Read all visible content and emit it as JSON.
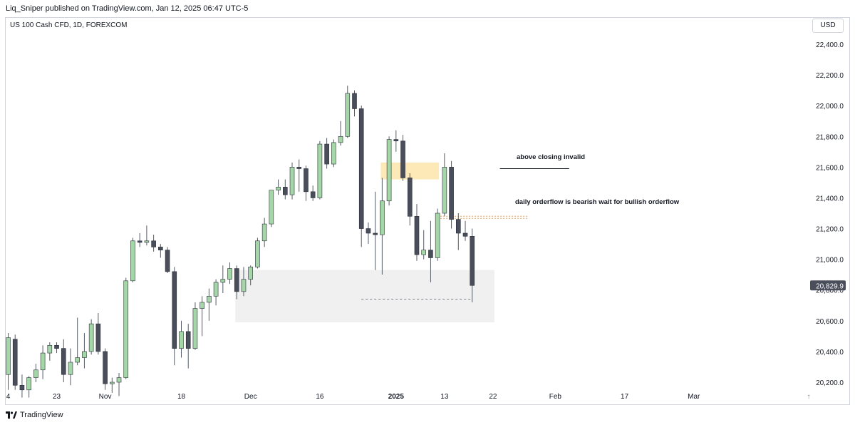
{
  "header": {
    "text": "Liq_Sniper published on TradingView.com, Jan 12, 2025 06:47 UTC-5"
  },
  "symbol": {
    "text": "US 100 Cash CFD, 1D, FOREXCOM"
  },
  "currency": "USD",
  "brand": {
    "name": "TradingView"
  },
  "colors": {
    "up": "#a5d6a7",
    "down": "#4a4e5a",
    "wick": "#555a66",
    "zone": "#f0f0f0",
    "supply": "#fde9b8",
    "price_label": "#4a4e5a"
  },
  "chart_data": {
    "type": "candlestick",
    "y_axis": {
      "min": 20150,
      "max": 22500,
      "ticks": [
        "22,400.0",
        "22,200.0",
        "22,000.0",
        "21,800.0",
        "21,600.0",
        "21,400.0",
        "21,200.0",
        "21,000.0",
        "20,800.0",
        "20,600.0",
        "20,400.0",
        "20,200.0"
      ],
      "tick_values": [
        22400,
        22200,
        22000,
        21800,
        21600,
        21400,
        21200,
        21000,
        20800,
        20600,
        20400,
        20200
      ]
    },
    "x_axis": {
      "labels": [
        {
          "text": "4",
          "bar": 0
        },
        {
          "text": "23",
          "bar": 7
        },
        {
          "text": "Nov",
          "bar": 14
        },
        {
          "text": "18",
          "bar": 25
        },
        {
          "text": "Dec",
          "bar": 35
        },
        {
          "text": "16",
          "bar": 45
        },
        {
          "text": "2025",
          "bar": 56
        },
        {
          "text": "13",
          "bar": 63
        },
        {
          "text": "22",
          "bar": 70
        },
        {
          "text": "Feb",
          "bar": 79
        },
        {
          "text": "17",
          "bar": 89
        },
        {
          "text": "Mar",
          "bar": 99
        }
      ]
    },
    "last_price": {
      "value": 20829.9,
      "label": "20,829.9"
    },
    "candles": [
      {
        "o": 20250,
        "h": 20520,
        "l": 20150,
        "c": 20490
      },
      {
        "o": 20480,
        "h": 20510,
        "l": 20150,
        "c": 20180
      },
      {
        "o": 20180,
        "h": 20250,
        "l": 20100,
        "c": 20150
      },
      {
        "o": 20150,
        "h": 20240,
        "l": 20100,
        "c": 20230
      },
      {
        "o": 20230,
        "h": 20320,
        "l": 20200,
        "c": 20280
      },
      {
        "o": 20280,
        "h": 20440,
        "l": 20220,
        "c": 20390
      },
      {
        "o": 20390,
        "h": 20460,
        "l": 20340,
        "c": 20440
      },
      {
        "o": 20440,
        "h": 20460,
        "l": 20390,
        "c": 20420
      },
      {
        "o": 20420,
        "h": 20480,
        "l": 20200,
        "c": 20250
      },
      {
        "o": 20250,
        "h": 20420,
        "l": 20180,
        "c": 20330
      },
      {
        "o": 20330,
        "h": 20620,
        "l": 20310,
        "c": 20360
      },
      {
        "o": 20360,
        "h": 20520,
        "l": 20290,
        "c": 20400
      },
      {
        "o": 20400,
        "h": 20610,
        "l": 20380,
        "c": 20580
      },
      {
        "o": 20580,
        "h": 20650,
        "l": 20380,
        "c": 20400
      },
      {
        "o": 20400,
        "h": 20420,
        "l": 20150,
        "c": 20190
      },
      {
        "o": 20190,
        "h": 20230,
        "l": 20130,
        "c": 20200
      },
      {
        "o": 20200,
        "h": 20260,
        "l": 20110,
        "c": 20230
      },
      {
        "o": 20230,
        "h": 20880,
        "l": 20220,
        "c": 20860
      },
      {
        "o": 20860,
        "h": 21140,
        "l": 20850,
        "c": 21120
      },
      {
        "o": 21120,
        "h": 21170,
        "l": 21080,
        "c": 21110
      },
      {
        "o": 21110,
        "h": 21220,
        "l": 21090,
        "c": 21120
      },
      {
        "o": 21120,
        "h": 21160,
        "l": 21050,
        "c": 21080
      },
      {
        "o": 21080,
        "h": 21100,
        "l": 21010,
        "c": 21060
      },
      {
        "o": 21060,
        "h": 21080,
        "l": 20910,
        "c": 20920
      },
      {
        "o": 20920,
        "h": 20950,
        "l": 20310,
        "c": 20420
      },
      {
        "o": 20420,
        "h": 20600,
        "l": 20360,
        "c": 20530
      },
      {
        "o": 20530,
        "h": 20580,
        "l": 20290,
        "c": 20420
      },
      {
        "o": 20420,
        "h": 20720,
        "l": 20410,
        "c": 20680
      },
      {
        "o": 20680,
        "h": 20760,
        "l": 20500,
        "c": 20720
      },
      {
        "o": 20720,
        "h": 20810,
        "l": 20600,
        "c": 20760
      },
      {
        "o": 20760,
        "h": 20870,
        "l": 20700,
        "c": 20850
      },
      {
        "o": 20850,
        "h": 20960,
        "l": 20780,
        "c": 20870
      },
      {
        "o": 20870,
        "h": 20980,
        "l": 20840,
        "c": 20940
      },
      {
        "o": 20940,
        "h": 20960,
        "l": 20740,
        "c": 20790
      },
      {
        "o": 20790,
        "h": 20950,
        "l": 20760,
        "c": 20870
      },
      {
        "o": 20870,
        "h": 20960,
        "l": 20830,
        "c": 20950
      },
      {
        "o": 20950,
        "h": 21140,
        "l": 20940,
        "c": 21120
      },
      {
        "o": 21120,
        "h": 21270,
        "l": 21080,
        "c": 21230
      },
      {
        "o": 21230,
        "h": 21450,
        "l": 21210,
        "c": 21450
      },
      {
        "o": 21450,
        "h": 21520,
        "l": 21420,
        "c": 21470
      },
      {
        "o": 21470,
        "h": 21520,
        "l": 21390,
        "c": 21420
      },
      {
        "o": 21420,
        "h": 21630,
        "l": 21390,
        "c": 21600
      },
      {
        "o": 21600,
        "h": 21650,
        "l": 21440,
        "c": 21590
      },
      {
        "o": 21590,
        "h": 21610,
        "l": 21380,
        "c": 21440
      },
      {
        "o": 21440,
        "h": 21480,
        "l": 21380,
        "c": 21400
      },
      {
        "o": 21400,
        "h": 21770,
        "l": 21390,
        "c": 21750
      },
      {
        "o": 21750,
        "h": 21790,
        "l": 21590,
        "c": 21620
      },
      {
        "o": 21620,
        "h": 21780,
        "l": 21600,
        "c": 21760
      },
      {
        "o": 21760,
        "h": 21900,
        "l": 21740,
        "c": 21800
      },
      {
        "o": 21800,
        "h": 22130,
        "l": 21790,
        "c": 22080
      },
      {
        "o": 22080,
        "h": 22100,
        "l": 21930,
        "c": 21980
      },
      {
        "o": 21980,
        "h": 22000,
        "l": 21080,
        "c": 21200
      },
      {
        "o": 21200,
        "h": 21240,
        "l": 21100,
        "c": 21170
      },
      {
        "o": 21170,
        "h": 21440,
        "l": 20930,
        "c": 21160
      },
      {
        "o": 21160,
        "h": 21530,
        "l": 20900,
        "c": 21380
      },
      {
        "o": 21380,
        "h": 21800,
        "l": 21350,
        "c": 21780
      },
      {
        "o": 21780,
        "h": 21840,
        "l": 21700,
        "c": 21770
      },
      {
        "o": 21770,
        "h": 21810,
        "l": 21510,
        "c": 21530
      },
      {
        "o": 21530,
        "h": 21560,
        "l": 21220,
        "c": 21280
      },
      {
        "o": 21280,
        "h": 21360,
        "l": 20990,
        "c": 21030
      },
      {
        "o": 21030,
        "h": 21190,
        "l": 21000,
        "c": 21060
      },
      {
        "o": 21060,
        "h": 21250,
        "l": 20850,
        "c": 21010
      },
      {
        "o": 21010,
        "h": 21330,
        "l": 20990,
        "c": 21300
      },
      {
        "o": 21300,
        "h": 21690,
        "l": 21280,
        "c": 21600
      },
      {
        "o": 21600,
        "h": 21640,
        "l": 21200,
        "c": 21260
      },
      {
        "o": 21260,
        "h": 21300,
        "l": 21060,
        "c": 21170
      },
      {
        "o": 21170,
        "h": 21250,
        "l": 21120,
        "c": 21150
      },
      {
        "o": 21150,
        "h": 21200,
        "l": 20720,
        "c": 20830
      }
    ],
    "annotations": [
      {
        "text": "above closing invalid"
      },
      {
        "text": "daily orderflow is bearish wait for bullish orderflow"
      }
    ],
    "zones": [
      {
        "name": "demand",
        "top": 20930,
        "bottom": 20590,
        "from_bar": 33,
        "to_bar": 70
      },
      {
        "name": "supply",
        "top": 21630,
        "bottom": 21520,
        "from_bar": 54,
        "to_bar": 62
      }
    ],
    "lines": [
      {
        "name": "sell-side-level",
        "value": 20740,
        "from_bar": 51,
        "to_bar": 67,
        "style": "dashed"
      },
      {
        "name": "orderflow-level",
        "value": 21280,
        "from_bar": 62,
        "to_bar": 75,
        "style": "dotted"
      },
      {
        "name": "invalid-level",
        "value": 21590,
        "from_bar": 71,
        "to_bar": 81,
        "style": "solid"
      }
    ],
    "grid": false,
    "legend": "none"
  }
}
